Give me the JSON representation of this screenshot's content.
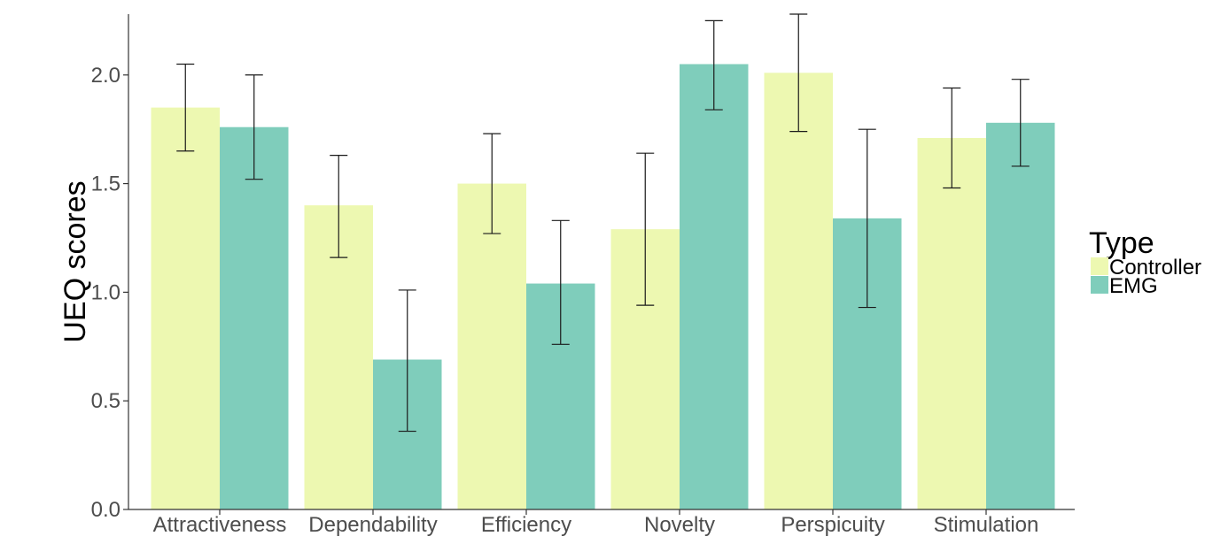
{
  "chart_data": {
    "type": "bar",
    "title": "",
    "xlabel": "",
    "ylabel": "UEQ scores",
    "ylim": [
      0,
      2.28
    ],
    "yticks": [
      0.0,
      0.5,
      1.0,
      1.5,
      2.0
    ],
    "ytick_labels": [
      "0.0",
      "0.5",
      "1.0",
      "1.5",
      "2.0"
    ],
    "categories": [
      "Attractiveness",
      "Dependability",
      "Efficiency",
      "Novelty",
      "Perspicuity",
      "Stimulation"
    ],
    "legend": {
      "title": "Type",
      "position": "right"
    },
    "grid": false,
    "series": [
      {
        "name": "Controller",
        "color": "#edf8b1",
        "values": [
          1.85,
          1.4,
          1.5,
          1.29,
          2.01,
          1.71
        ],
        "err_low": [
          1.65,
          1.16,
          1.27,
          0.94,
          1.74,
          1.48
        ],
        "err_high": [
          2.05,
          1.63,
          1.73,
          1.64,
          2.28,
          1.94
        ]
      },
      {
        "name": "EMG",
        "color": "#7fcdbb",
        "values": [
          1.76,
          0.69,
          1.04,
          2.05,
          1.34,
          1.78
        ],
        "err_low": [
          1.52,
          0.36,
          0.76,
          1.84,
          0.93,
          1.58
        ],
        "err_high": [
          2.0,
          1.01,
          1.33,
          2.25,
          1.75,
          1.98
        ]
      }
    ]
  }
}
